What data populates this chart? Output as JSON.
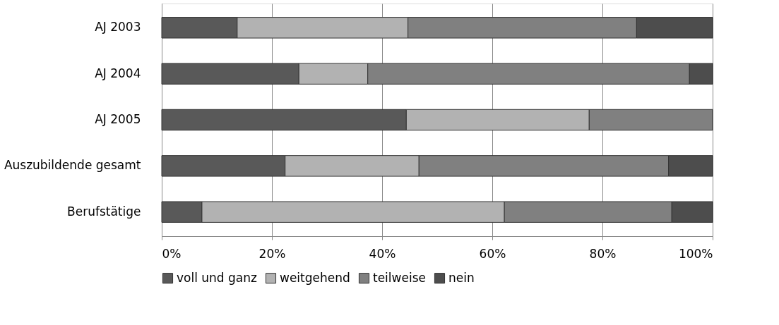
{
  "chart_data": {
    "type": "bar",
    "orientation": "horizontal",
    "stacked": true,
    "grid": "x",
    "legend": "bottom",
    "categories": [
      "AJ 2003",
      "AJ 2004",
      "AJ 2005",
      "Auszubildende gesamt",
      "Berufstätige"
    ],
    "xlim": [
      0,
      100
    ],
    "xticks": [
      {
        "value": 0,
        "label": "0%"
      },
      {
        "value": 20,
        "label": "20%"
      },
      {
        "value": 40,
        "label": "40%"
      },
      {
        "value": 60,
        "label": "60%"
      },
      {
        "value": 80,
        "label": "80%"
      },
      {
        "value": 100,
        "label": "100%"
      }
    ],
    "series": [
      {
        "name": "voll und ganz",
        "color": "#595959",
        "values": [
          13.7,
          24.9,
          44.4,
          22.4,
          7.3
        ]
      },
      {
        "name": "weitgehend",
        "color": "#b2b2b2",
        "values": [
          31.0,
          12.5,
          33.2,
          24.3,
          54.9
        ]
      },
      {
        "name": "teilweise",
        "color": "#808080",
        "values": [
          41.5,
          58.4,
          22.4,
          45.3,
          30.4
        ]
      },
      {
        "name": "nein",
        "color": "#4d4d4d",
        "values": [
          13.8,
          4.2,
          0,
          8.0,
          7.4
        ]
      }
    ]
  }
}
